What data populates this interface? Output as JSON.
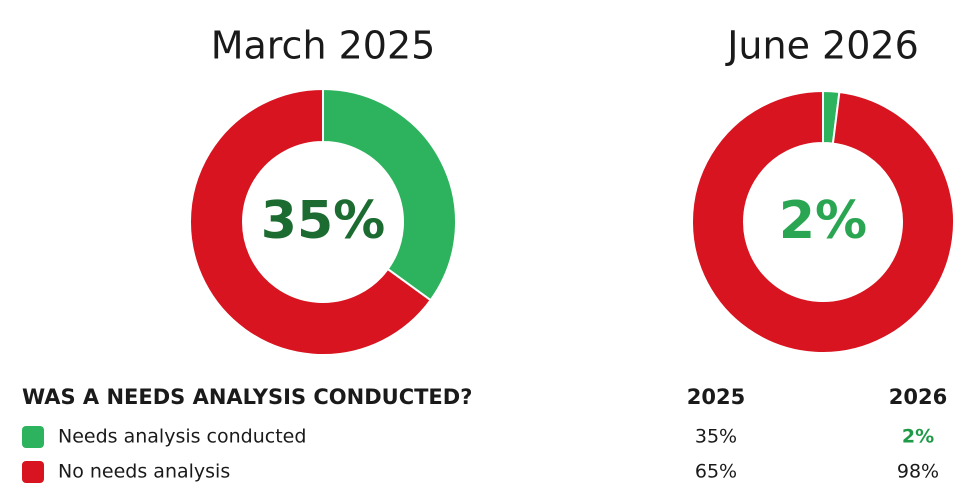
{
  "chart_data": [
    {
      "type": "donut",
      "title": "March 2025",
      "categories": [
        "Needs analysis conducted",
        "No needs analysis"
      ],
      "values": [
        35,
        65
      ],
      "value_labels": [
        "35%",
        "65%"
      ],
      "colors": [
        "#2db35d",
        "#d7141f"
      ]
    },
    {
      "type": "donut",
      "title": "June 2026",
      "categories": [
        "Needs analysis conducted",
        "No needs analysis"
      ],
      "values": [
        2,
        98
      ],
      "value_labels": [
        "2%",
        "98%"
      ],
      "colors": [
        "#2db35d",
        "#d7141f"
      ]
    }
  ],
  "table": {
    "title": "WAS A NEEDS ANALYSIS CONDUCTED?",
    "columns": [
      "2025",
      "2026"
    ]
  }
}
